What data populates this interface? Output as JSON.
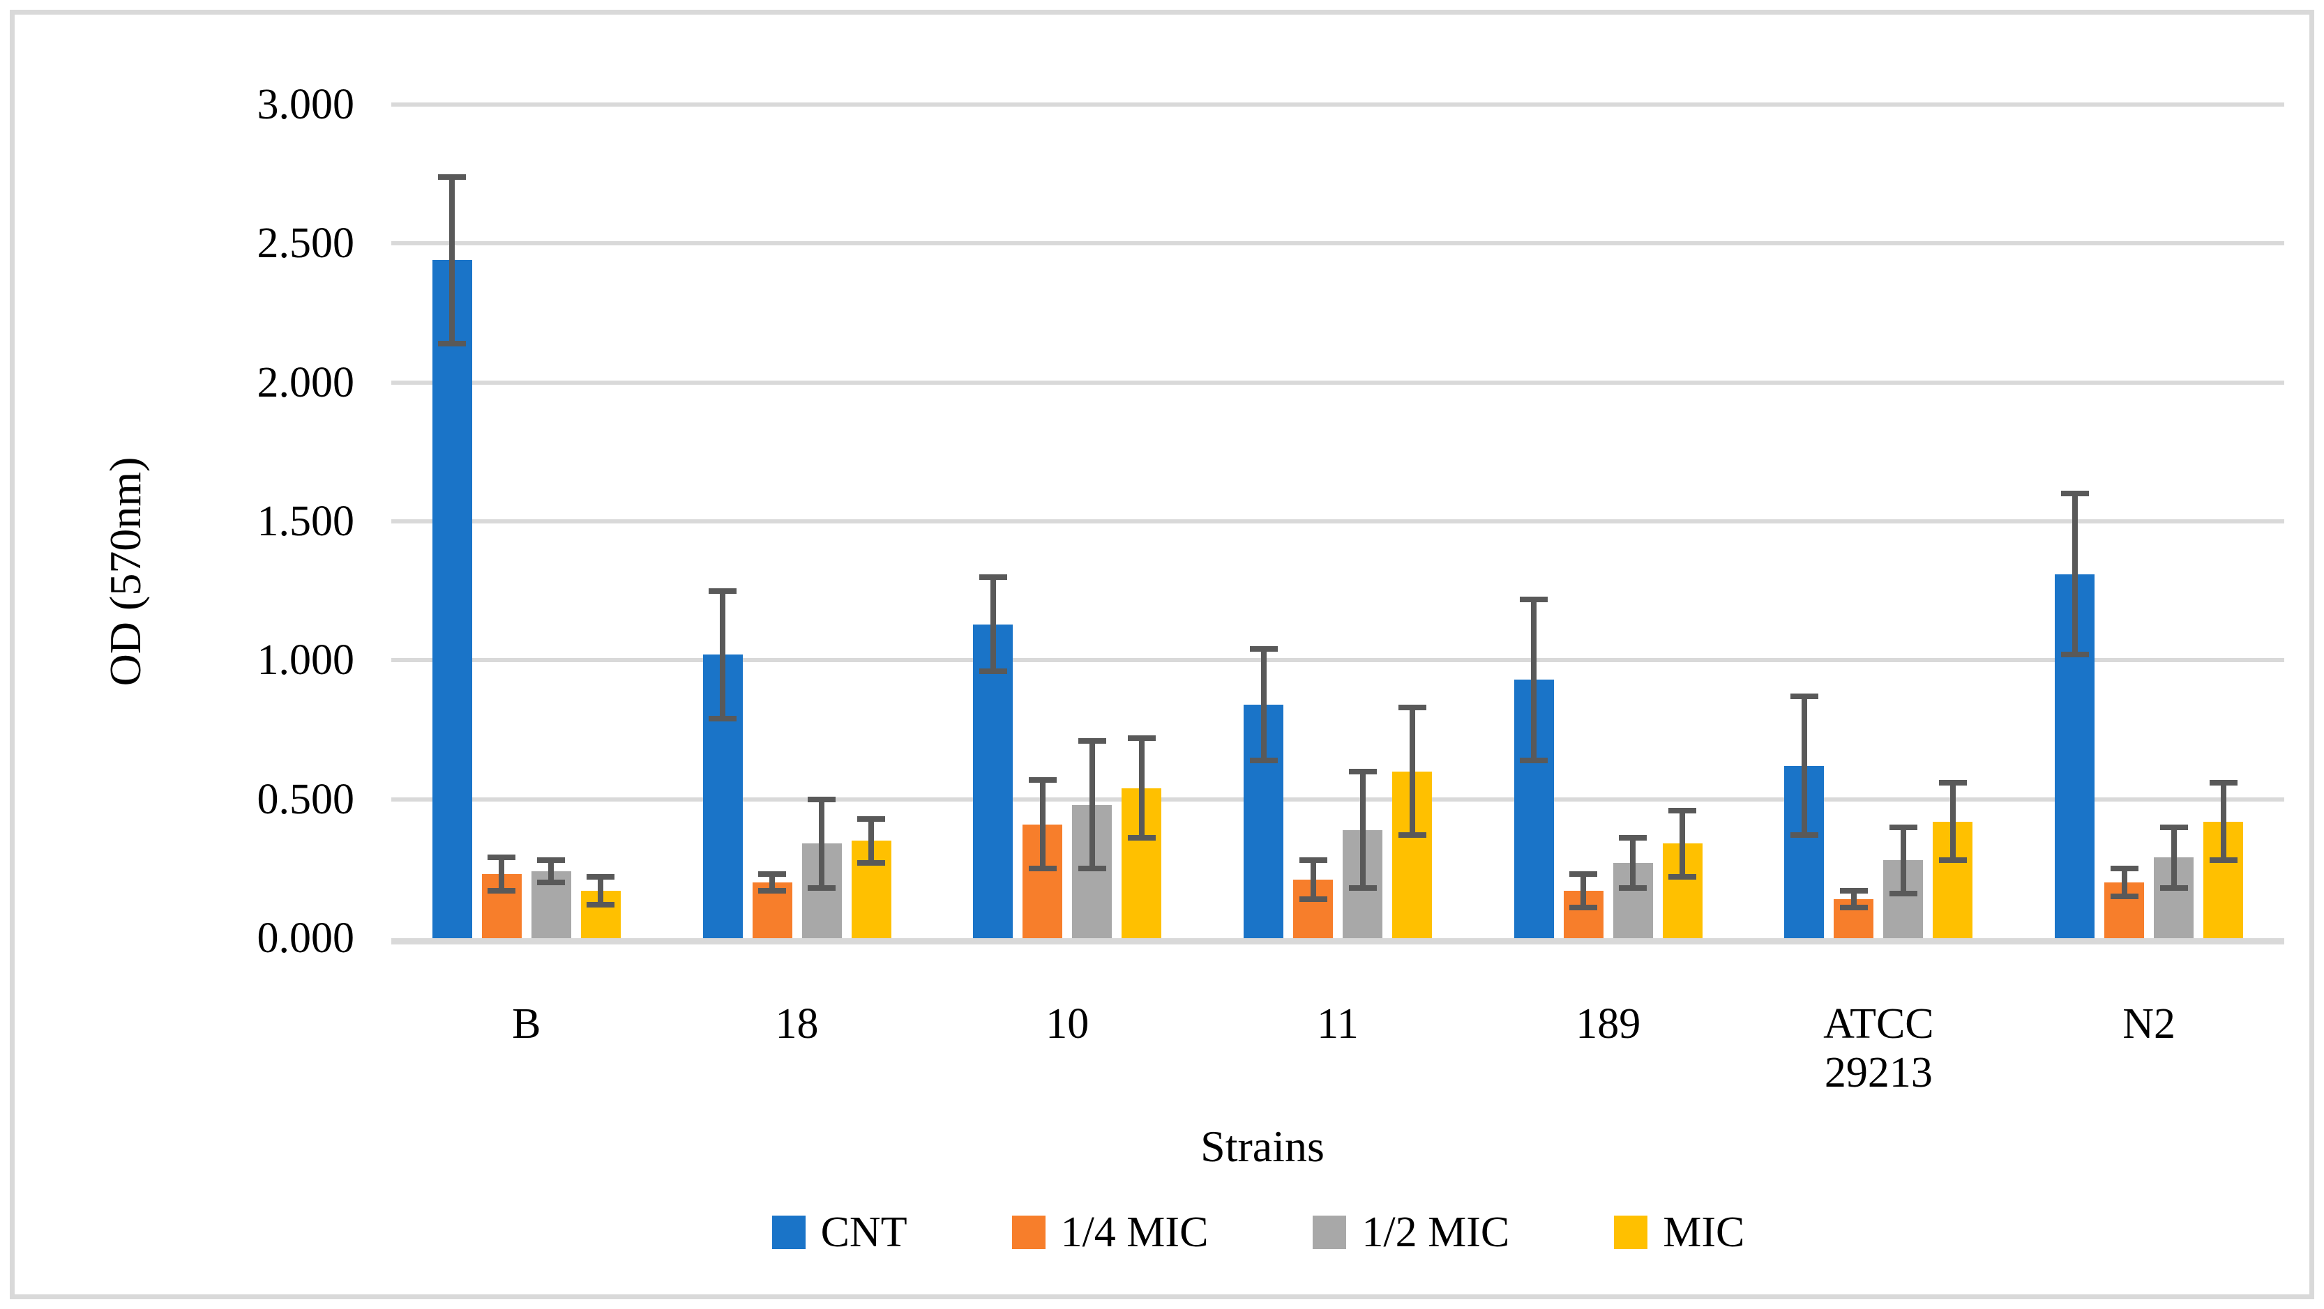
{
  "figure": {
    "background": "#FFFFFF",
    "border_color": "#D9D9D9"
  },
  "chart_data": {
    "type": "bar",
    "title": "",
    "xlabel": "Strains",
    "ylabel": "OD (570nm)",
    "ylim": [
      0,
      3
    ],
    "ytick_step": 0.5,
    "ytick_labels": [
      "0.000",
      "0.500",
      "1.000",
      "1.500",
      "2.000",
      "2.500",
      "3.000"
    ],
    "grid": true,
    "gridline_color": "#D9D9D9",
    "error_bar_color": "#595959",
    "legend_position": "bottom",
    "categories": [
      "B",
      "18",
      "10",
      "11",
      "189",
      "ATCC 29213",
      "N2"
    ],
    "series": [
      {
        "name": "CNT",
        "color": "#1A74C8",
        "values": [
          2.44,
          1.02,
          1.13,
          0.84,
          0.93,
          0.62,
          1.31
        ],
        "errors": [
          0.3,
          0.23,
          0.17,
          0.2,
          0.29,
          0.25,
          0.29
        ]
      },
      {
        "name": "1/4 MIC",
        "color": "#F77E2B",
        "values": [
          0.23,
          0.2,
          0.41,
          0.21,
          0.17,
          0.14,
          0.2
        ],
        "errors": [
          0.06,
          0.03,
          0.16,
          0.07,
          0.06,
          0.03,
          0.05
        ]
      },
      {
        "name": "1/2 MIC",
        "color": "#A8A8A8",
        "values": [
          0.24,
          0.34,
          0.48,
          0.39,
          0.27,
          0.28,
          0.29
        ],
        "errors": [
          0.04,
          0.16,
          0.23,
          0.21,
          0.09,
          0.12,
          0.11
        ]
      },
      {
        "name": "MIC",
        "color": "#FFC000",
        "values": [
          0.17,
          0.35,
          0.54,
          0.6,
          0.34,
          0.42,
          0.42
        ],
        "errors": [
          0.05,
          0.08,
          0.18,
          0.23,
          0.12,
          0.14,
          0.14
        ]
      }
    ]
  }
}
